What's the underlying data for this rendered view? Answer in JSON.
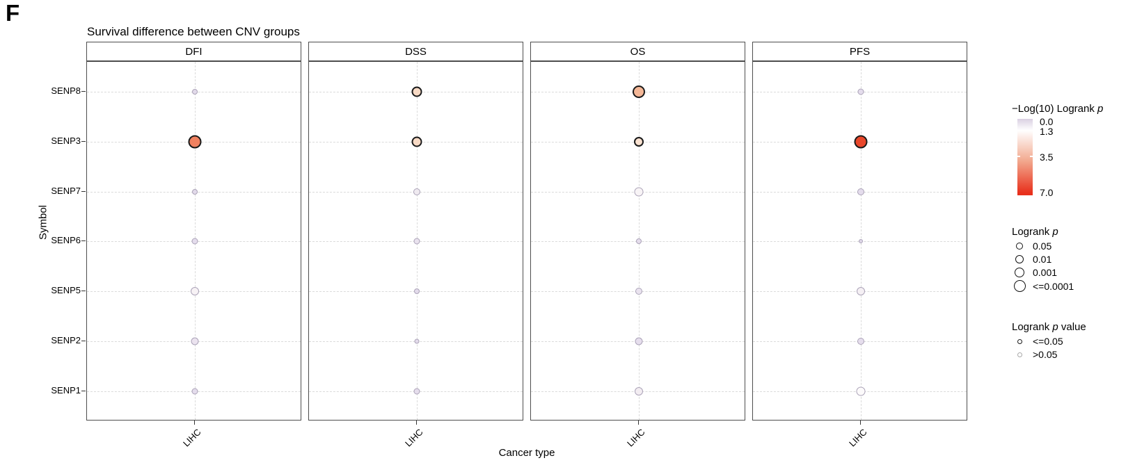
{
  "figure_label": "F",
  "chart_data": {
    "type": "scatter",
    "title": "Survival difference between CNV groups",
    "xlabel": "Cancer type",
    "ylabel": "Symbol",
    "panels": [
      "DFI",
      "DSS",
      "OS",
      "PFS"
    ],
    "x_categories": [
      "LIHC"
    ],
    "y_categories": [
      "SENP8",
      "SENP3",
      "SENP7",
      "SENP6",
      "SENP5",
      "SENP2",
      "SENP1"
    ],
    "points": {
      "DFI": [
        {
          "gene": "SENP8",
          "cancer": "LIHC",
          "neglog10_logrank_p": 0.3,
          "significant": false,
          "size": 8,
          "fill": "#E2DAEA"
        },
        {
          "gene": "SENP3",
          "cancer": "LIHC",
          "neglog10_logrank_p": 4.0,
          "significant": true,
          "size": 19,
          "fill": "#F08160"
        },
        {
          "gene": "SENP7",
          "cancer": "LIHC",
          "neglog10_logrank_p": 0.3,
          "significant": false,
          "size": 8,
          "fill": "#E2DAEA"
        },
        {
          "gene": "SENP6",
          "cancer": "LIHC",
          "neglog10_logrank_p": 0.4,
          "significant": false,
          "size": 9,
          "fill": "#E4DCEC"
        },
        {
          "gene": "SENP5",
          "cancer": "LIHC",
          "neglog10_logrank_p": 1.1,
          "significant": false,
          "size": 12,
          "fill": "#F7F2F5"
        },
        {
          "gene": "SENP2",
          "cancer": "LIHC",
          "neglog10_logrank_p": 0.6,
          "significant": false,
          "size": 11,
          "fill": "#EBE3EF"
        },
        {
          "gene": "SENP1",
          "cancer": "LIHC",
          "neglog10_logrank_p": 0.4,
          "significant": false,
          "size": 9,
          "fill": "#E4DCEC"
        }
      ],
      "DSS": [
        {
          "gene": "SENP8",
          "cancer": "LIHC",
          "neglog10_logrank_p": 1.9,
          "significant": true,
          "size": 15,
          "fill": "#F8DAC5"
        },
        {
          "gene": "SENP3",
          "cancer": "LIHC",
          "neglog10_logrank_p": 1.9,
          "significant": true,
          "size": 15,
          "fill": "#F8DAC5"
        },
        {
          "gene": "SENP7",
          "cancer": "LIHC",
          "neglog10_logrank_p": 0.9,
          "significant": false,
          "size": 10,
          "fill": "#EFEAF0"
        },
        {
          "gene": "SENP6",
          "cancer": "LIHC",
          "neglog10_logrank_p": 0.6,
          "significant": false,
          "size": 9,
          "fill": "#E9E2EE"
        },
        {
          "gene": "SENP5",
          "cancer": "LIHC",
          "neglog10_logrank_p": 0.4,
          "significant": false,
          "size": 8,
          "fill": "#E3DBEB"
        },
        {
          "gene": "SENP2",
          "cancer": "LIHC",
          "neglog10_logrank_p": 0.3,
          "significant": false,
          "size": 7,
          "fill": "#E3DBEB"
        },
        {
          "gene": "SENP1",
          "cancer": "LIHC",
          "neglog10_logrank_p": 0.5,
          "significant": false,
          "size": 9,
          "fill": "#E5DDEC"
        }
      ],
      "OS": [
        {
          "gene": "SENP8",
          "cancer": "LIHC",
          "neglog10_logrank_p": 2.7,
          "significant": true,
          "size": 18,
          "fill": "#F4B797"
        },
        {
          "gene": "SENP3",
          "cancer": "LIHC",
          "neglog10_logrank_p": 1.6,
          "significant": true,
          "size": 14,
          "fill": "#FAE2D1"
        },
        {
          "gene": "SENP7",
          "cancer": "LIHC",
          "neglog10_logrank_p": 1.2,
          "significant": false,
          "size": 13,
          "fill": "#F8F4F6"
        },
        {
          "gene": "SENP6",
          "cancer": "LIHC",
          "neglog10_logrank_p": 0.5,
          "significant": false,
          "size": 8,
          "fill": "#E5DDEC"
        },
        {
          "gene": "SENP5",
          "cancer": "LIHC",
          "neglog10_logrank_p": 0.6,
          "significant": false,
          "size": 10,
          "fill": "#EAE3EF"
        },
        {
          "gene": "SENP2",
          "cancer": "LIHC",
          "neglog10_logrank_p": 0.6,
          "significant": false,
          "size": 11,
          "fill": "#E6DEED"
        },
        {
          "gene": "SENP1",
          "cancer": "LIHC",
          "neglog10_logrank_p": 1.0,
          "significant": false,
          "size": 12,
          "fill": "#F3EDF2"
        }
      ],
      "PFS": [
        {
          "gene": "SENP8",
          "cancer": "LIHC",
          "neglog10_logrank_p": 0.4,
          "significant": false,
          "size": 9,
          "fill": "#E4DCEC"
        },
        {
          "gene": "SENP3",
          "cancer": "LIHC",
          "neglog10_logrank_p": 6.5,
          "significant": true,
          "size": 19,
          "fill": "#E9472B"
        },
        {
          "gene": "SENP7",
          "cancer": "LIHC",
          "neglog10_logrank_p": 0.5,
          "significant": false,
          "size": 10,
          "fill": "#E4DCEC"
        },
        {
          "gene": "SENP6",
          "cancer": "LIHC",
          "neglog10_logrank_p": 0.2,
          "significant": false,
          "size": 6,
          "fill": "#DED6E7"
        },
        {
          "gene": "SENP5",
          "cancer": "LIHC",
          "neglog10_logrank_p": 1.0,
          "significant": false,
          "size": 12,
          "fill": "#F5F0F4"
        },
        {
          "gene": "SENP2",
          "cancer": "LIHC",
          "neglog10_logrank_p": 0.5,
          "significant": false,
          "size": 10,
          "fill": "#E6DEED"
        },
        {
          "gene": "SENP1",
          "cancer": "LIHC",
          "neglog10_logrank_p": 1.2,
          "significant": false,
          "size": 13,
          "fill": "#FCFAFB"
        }
      ]
    }
  },
  "legend": {
    "color_scale": {
      "title_prefix": "−Log(10) Logrank ",
      "title_italic": "p",
      "ticks": [
        {
          "label": "0.0",
          "pos": 0.03
        },
        {
          "label": "1.3",
          "pos": 0.15
        },
        {
          "label": "3.5",
          "pos": 0.49
        },
        {
          "label": "7.0",
          "pos": 0.95
        }
      ],
      "gradient_stops": [
        {
          "color": "#DAD0E2",
          "pos": 0.0
        },
        {
          "color": "#FFFFFF",
          "pos": 0.15
        },
        {
          "color": "#F2A88E",
          "pos": 0.55
        },
        {
          "color": "#E8301C",
          "pos": 0.97
        }
      ]
    },
    "size_scale": {
      "title_prefix": "Logrank ",
      "title_italic": "p",
      "items": [
        {
          "label": "0.05",
          "diameter": 10
        },
        {
          "label": "0.01",
          "diameter": 12
        },
        {
          "label": "0.001",
          "diameter": 14
        },
        {
          "label": "<=0.0001",
          "diameter": 17
        }
      ]
    },
    "significance": {
      "title_prefix": "Logrank ",
      "title_italic": "p",
      "title_suffix": " value",
      "items": [
        {
          "label": "<=0.05",
          "stroke": "#1A1A1A",
          "diameter": 7
        },
        {
          "label": ">0.05",
          "stroke": "#A8A8A8",
          "diameter": 7
        }
      ]
    },
    "dot_stroke_significant": "#1A1A1A",
    "dot_stroke_nonsignificant": "#ABA3B8"
  }
}
